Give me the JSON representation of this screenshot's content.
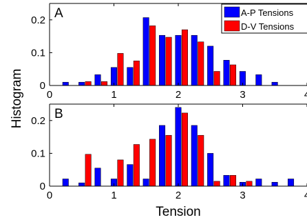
{
  "figure": {
    "ylabel": "Histogram",
    "xlabel": "Tension"
  },
  "colors": {
    "ap": "#0000ff",
    "dv": "#ff0000",
    "axis": "#000000"
  },
  "chart_data": [
    {
      "type": "bar",
      "panel_label": "A",
      "xlabel": "",
      "ylabel": "Histogram",
      "xlim": [
        0,
        4
      ],
      "ylim": [
        0,
        0.25
      ],
      "xticks": [
        "0",
        "1",
        "2",
        "3",
        "4"
      ],
      "yticks": [
        "0",
        "0.1",
        "0.2"
      ],
      "xtick_values": [
        0,
        1,
        2,
        3,
        4
      ],
      "ytick_values": [
        0,
        0.1,
        0.2
      ],
      "legend": "top-right",
      "grid": false,
      "x": [
        0.3,
        0.55,
        0.8,
        1.05,
        1.3,
        1.55,
        1.8,
        2.05,
        2.3,
        2.55,
        2.8,
        3.05,
        3.3,
        3.55,
        3.8
      ],
      "series": [
        {
          "name": "A-P Tensions",
          "color": "#0000ff",
          "values": [
            0.01,
            0.01,
            0.033,
            0.055,
            0.055,
            0.207,
            0.153,
            0.153,
            0.153,
            0.12,
            0.077,
            0.043,
            0.033,
            0.01,
            0
          ]
        },
        {
          "name": "D-V Tensions",
          "color": "#ff0000",
          "values": [
            0,
            0.012,
            0.012,
            0.098,
            0.075,
            0.182,
            0.147,
            0.17,
            0.133,
            0.043,
            0.063,
            0,
            0,
            0,
            0
          ]
        }
      ]
    },
    {
      "type": "bar",
      "panel_label": "B",
      "xlabel": "Tension",
      "ylabel": "Histogram",
      "xlim": [
        0,
        4
      ],
      "ylim": [
        0,
        0.25
      ],
      "xticks": [
        "0",
        "1",
        "2",
        "3",
        "4"
      ],
      "yticks": [
        "0",
        "0.1",
        "0.2"
      ],
      "xtick_values": [
        0,
        1,
        2,
        3,
        4
      ],
      "ytick_values": [
        0,
        0.1,
        0.2
      ],
      "grid": false,
      "x": [
        0.3,
        0.55,
        0.8,
        1.05,
        1.3,
        1.55,
        1.8,
        2.05,
        2.3,
        2.55,
        2.8,
        3.05,
        3.3,
        3.55,
        3.8
      ],
      "series": [
        {
          "name": "A-P Tensions",
          "color": "#0000ff",
          "values": [
            0.022,
            0.01,
            0.055,
            0.022,
            0.066,
            0.022,
            0.185,
            0.24,
            0.185,
            0.1,
            0.033,
            0.012,
            0.022,
            0.012,
            0.022
          ]
        },
        {
          "name": "D-V Tensions",
          "color": "#ff0000",
          "values": [
            0,
            0.097,
            0,
            0.08,
            0.127,
            0.143,
            0.155,
            0.223,
            0.155,
            0.015,
            0.033,
            0.015,
            0,
            0,
            0
          ]
        }
      ]
    }
  ]
}
